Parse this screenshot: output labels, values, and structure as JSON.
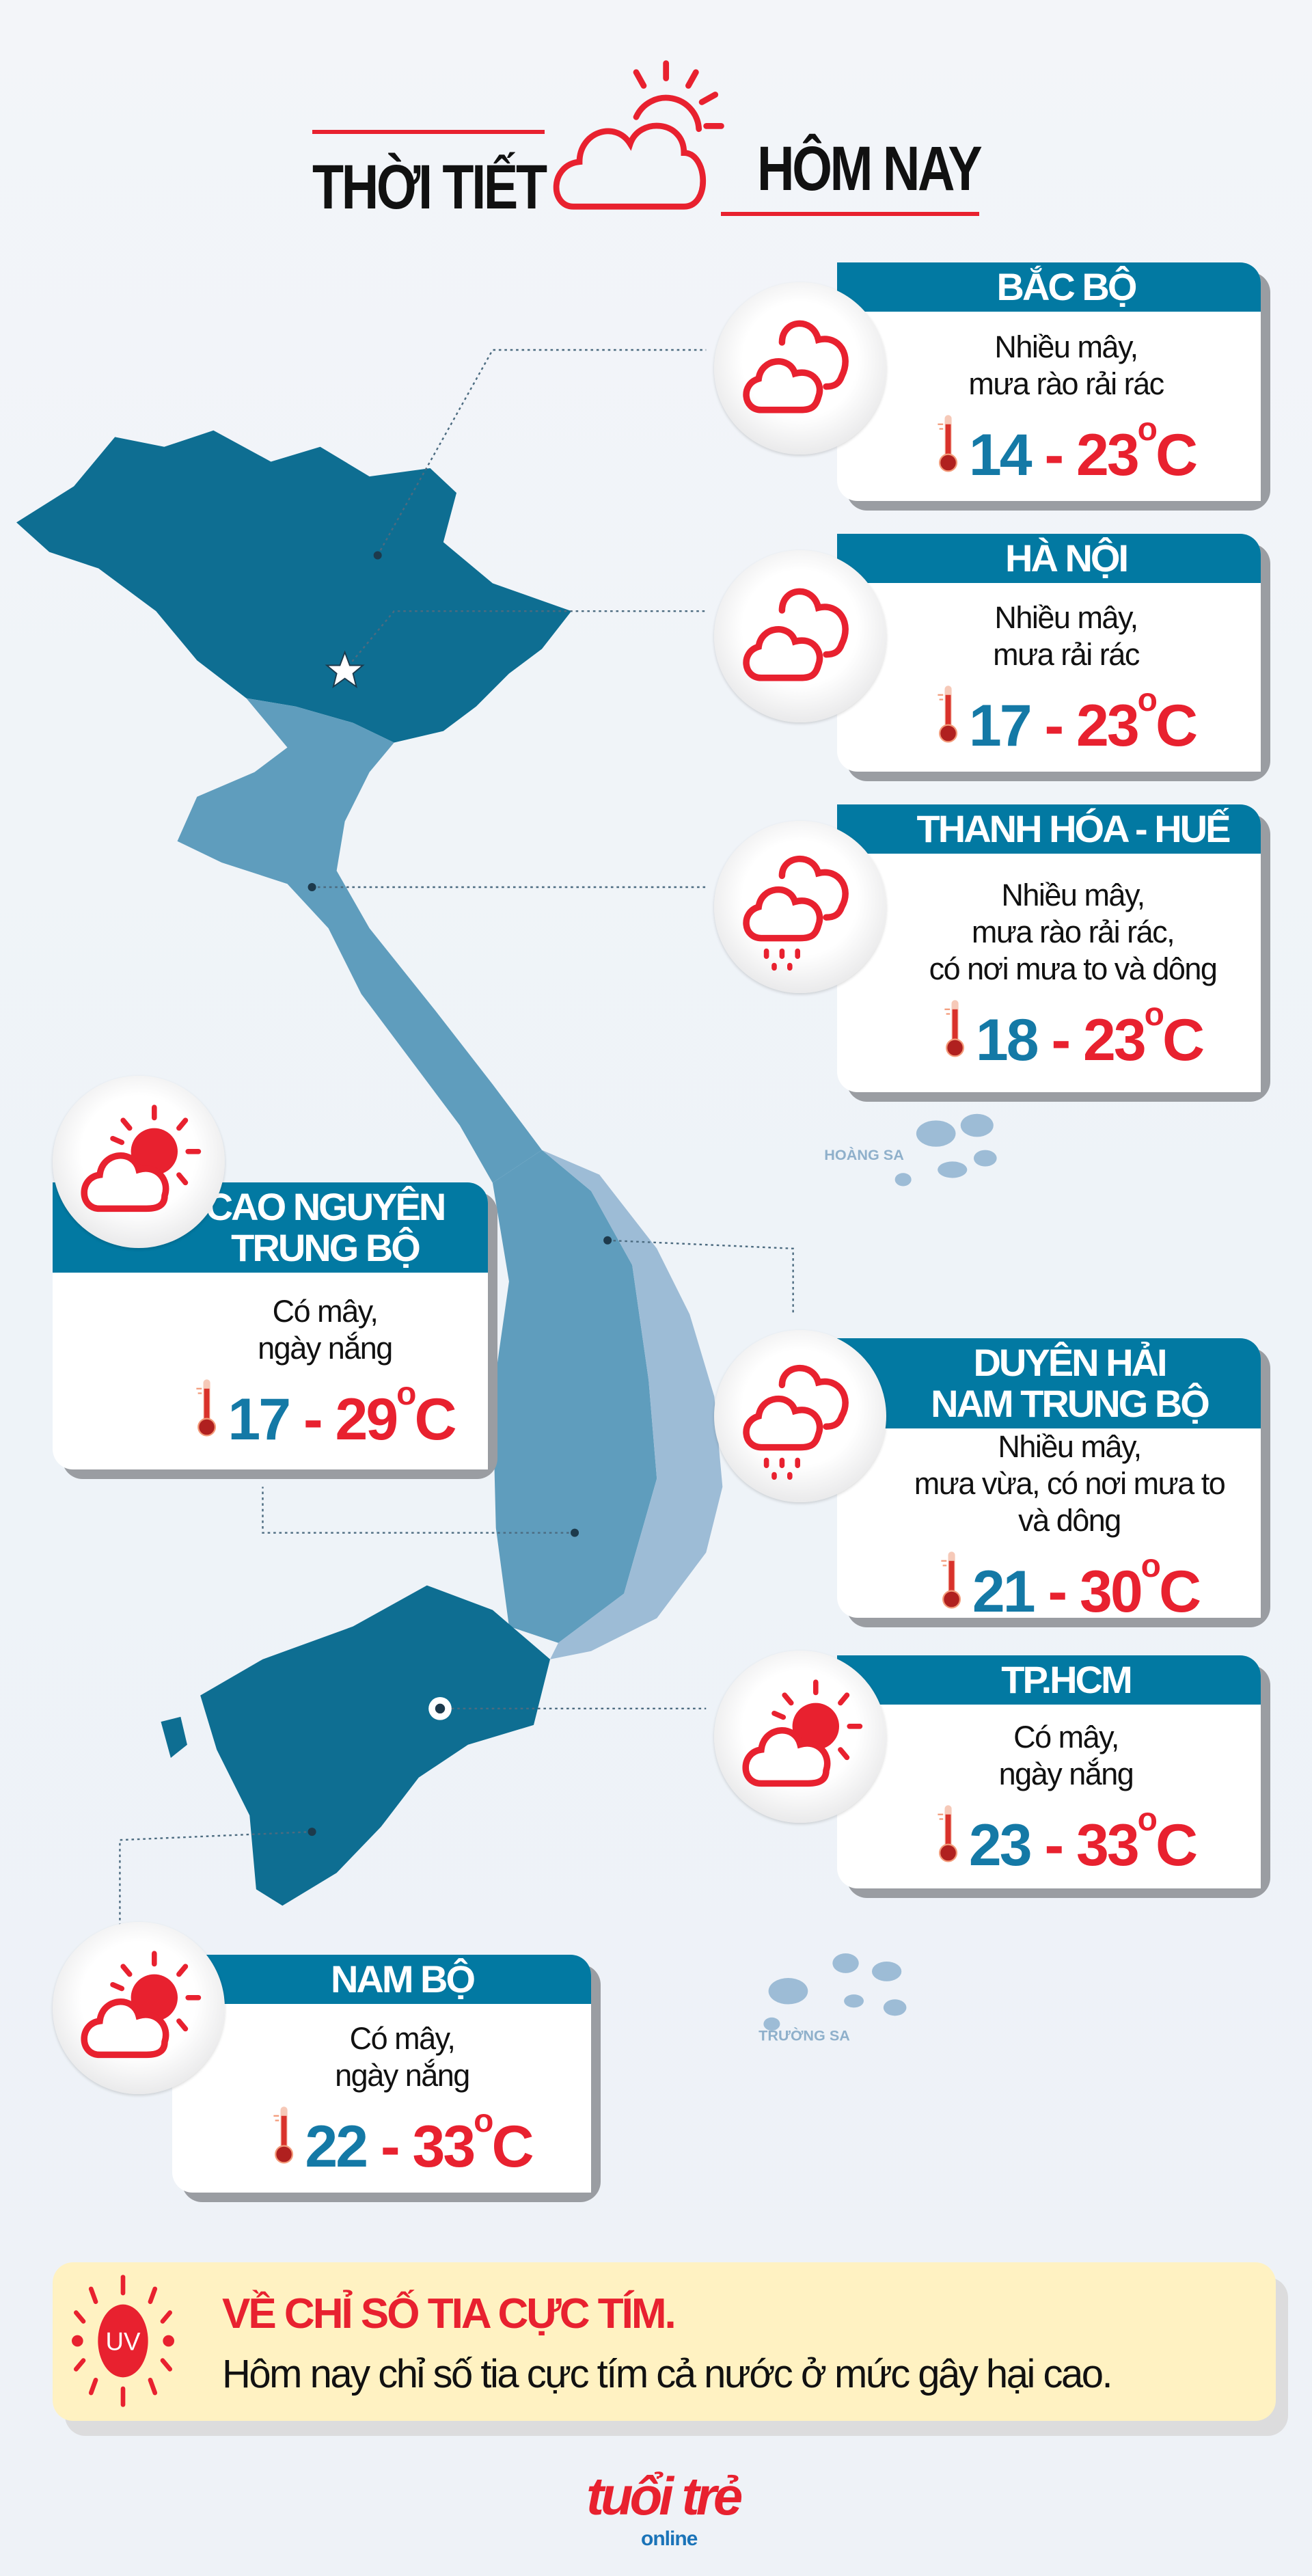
{
  "header": {
    "title_left": "THỜI TIẾT",
    "title_right": "HÔM NAY",
    "icon": "cloud-sun-icon"
  },
  "colors": {
    "accent_red": "#e8212f",
    "header_blue": "#0279a2",
    "min_temp_blue": "#1479a6",
    "uv_bg": "#fff2c2"
  },
  "map": {
    "labels": {
      "hoang_sa": "HOÀNG SA",
      "truong_sa": "TRƯỜNG SA"
    }
  },
  "cards": [
    {
      "region": [
        "BẮC BỘ"
      ],
      "desc": [
        "Nhiều mây,",
        "mưa rào rải rác"
      ],
      "min": "14",
      "max": "23",
      "unit": "C",
      "icon": "cloud-icon"
    },
    {
      "region": [
        "HÀ NỘI"
      ],
      "desc": [
        "Nhiều mây,",
        "mưa rải rác"
      ],
      "min": "17",
      "max": "23",
      "unit": "C",
      "icon": "cloud-icon"
    },
    {
      "region": [
        "THANH HÓA - HUẾ"
      ],
      "desc": [
        "Nhiều mây,",
        "mưa rào rải rác,",
        "có nơi mưa to và dông"
      ],
      "min": "18",
      "max": "23",
      "unit": "C",
      "icon": "rain-cloud-icon"
    },
    {
      "region": [
        "DUYÊN HẢI",
        "NAM TRUNG BỘ"
      ],
      "desc": [
        "Nhiều mây,",
        "mưa vừa, có nơi mưa to",
        "và dông"
      ],
      "min": "21",
      "max": "30",
      "unit": "C",
      "icon": "rain-cloud-icon"
    },
    {
      "region": [
        "TP.HCM"
      ],
      "desc": [
        "Có mây,",
        "ngày nắng"
      ],
      "min": "23",
      "max": "33",
      "unit": "C",
      "icon": "sun-cloud-icon"
    },
    {
      "region": [
        "CAO NGUYÊN",
        "TRUNG BỘ"
      ],
      "desc": [
        "Có mây,",
        "ngày nắng"
      ],
      "min": "17",
      "max": "29",
      "unit": "C",
      "icon": "sun-cloud-icon"
    },
    {
      "region": [
        "NAM BỘ"
      ],
      "desc": [
        "Có mây,",
        "ngày nắng"
      ],
      "min": "22",
      "max": "33",
      "unit": "C",
      "icon": "sun-cloud-icon"
    }
  ],
  "uv": {
    "badge": "UV",
    "title": "VỀ CHỈ SỐ TIA CỰC TÍM.",
    "text": "Hôm nay chỉ số tia cực tím cả nước ở mức gây hại cao."
  },
  "logo": {
    "main": "tuổi trẻ",
    "sub": "online"
  }
}
